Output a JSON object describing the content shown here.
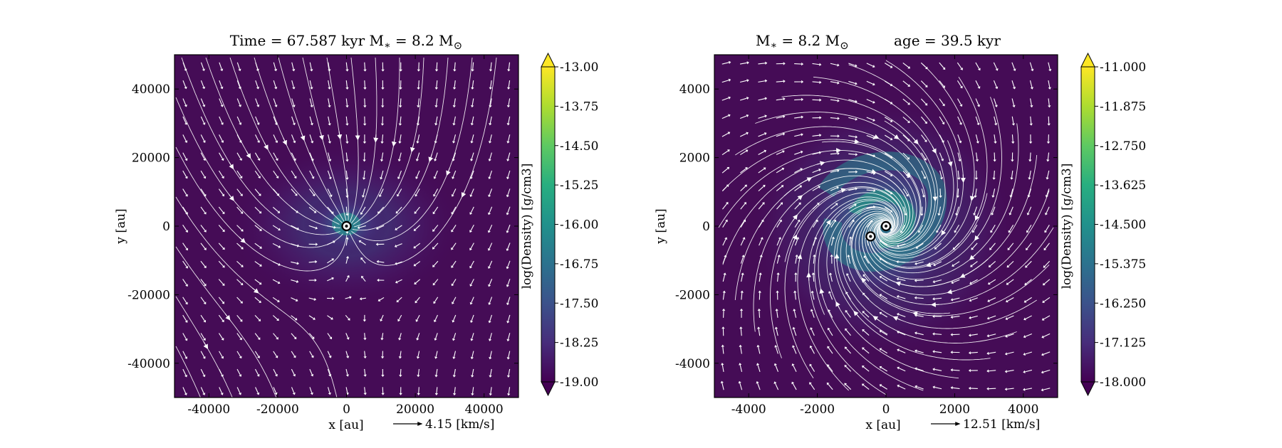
{
  "chart_data": [
    {
      "type": "heatmap",
      "title": "Time = 67.587 kyr    M",
      "title_sub": "∗",
      "title_mid": " = 8.2 M",
      "title_sub2": "⊙",
      "xlabel": "x [au]",
      "ylabel": "y [au]",
      "xlim": [
        -50000,
        50000
      ],
      "ylim": [
        -50000,
        50000
      ],
      "xticks": [
        -40000,
        -20000,
        0,
        20000,
        40000
      ],
      "yticks": [
        40000,
        20000,
        0,
        -20000,
        -40000
      ],
      "xtick_labels": [
        "-40000",
        "-20000",
        "0",
        "20000",
        "40000"
      ],
      "ytick_labels": [
        "40000",
        "20000",
        "0",
        "-20000",
        "-40000"
      ],
      "quiver_key_label": "4.15 [km/s]",
      "colorbar": {
        "label": "log(Density) [g/cm3]",
        "min": -19.0,
        "max": -13.0,
        "ticks": [
          -13.0,
          -13.75,
          -14.5,
          -15.25,
          -16.0,
          -16.75,
          -17.5,
          -18.25,
          -19.0
        ],
        "tick_labels": [
          "-13.00",
          "-13.75",
          "-14.50",
          "-15.25",
          "-16.00",
          "-16.75",
          "-17.50",
          "-18.25",
          "-19.00"
        ]
      },
      "sinks": [
        [
          0,
          0
        ]
      ],
      "flow": "infall"
    },
    {
      "type": "heatmap",
      "title": "M",
      "title_sub": "∗",
      "title_mid": " = 8.2 M",
      "title_sub2": "⊙",
      "title_right": "age = 39.5 kyr",
      "xlabel": "x [au]",
      "ylabel": "y [au]",
      "xlim": [
        -5000,
        5000
      ],
      "ylim": [
        -5000,
        5000
      ],
      "xticks": [
        -4000,
        -2000,
        0,
        2000,
        4000
      ],
      "yticks": [
        4000,
        2000,
        0,
        -2000,
        -4000
      ],
      "xtick_labels": [
        "-4000",
        "-2000",
        "0",
        "2000",
        "4000"
      ],
      "ytick_labels": [
        "4000",
        "2000",
        "0",
        "-2000",
        "-4000"
      ],
      "quiver_key_label": "12.51 [km/s]",
      "colorbar": {
        "label": "log(Density) [g/cm3]",
        "min": -18.0,
        "max": -11.0,
        "ticks": [
          -11.0,
          -11.875,
          -12.75,
          -13.625,
          -14.5,
          -15.375,
          -16.25,
          -17.125,
          -18.0
        ],
        "tick_labels": [
          "-11.000",
          "-11.875",
          "-12.750",
          "-13.625",
          "-14.500",
          "-15.375",
          "-16.250",
          "-17.125",
          "-18.000"
        ]
      },
      "sinks": [
        [
          -450,
          -300
        ],
        [
          0,
          0
        ]
      ],
      "flow": "spiral"
    }
  ],
  "colors": {
    "background": "#450c56",
    "cmap": [
      "#440154",
      "#472d7b",
      "#3b528b",
      "#2c728e",
      "#21918c",
      "#28ae80",
      "#5ec962",
      "#addc30",
      "#fde725"
    ],
    "stream": "#ffffff"
  }
}
